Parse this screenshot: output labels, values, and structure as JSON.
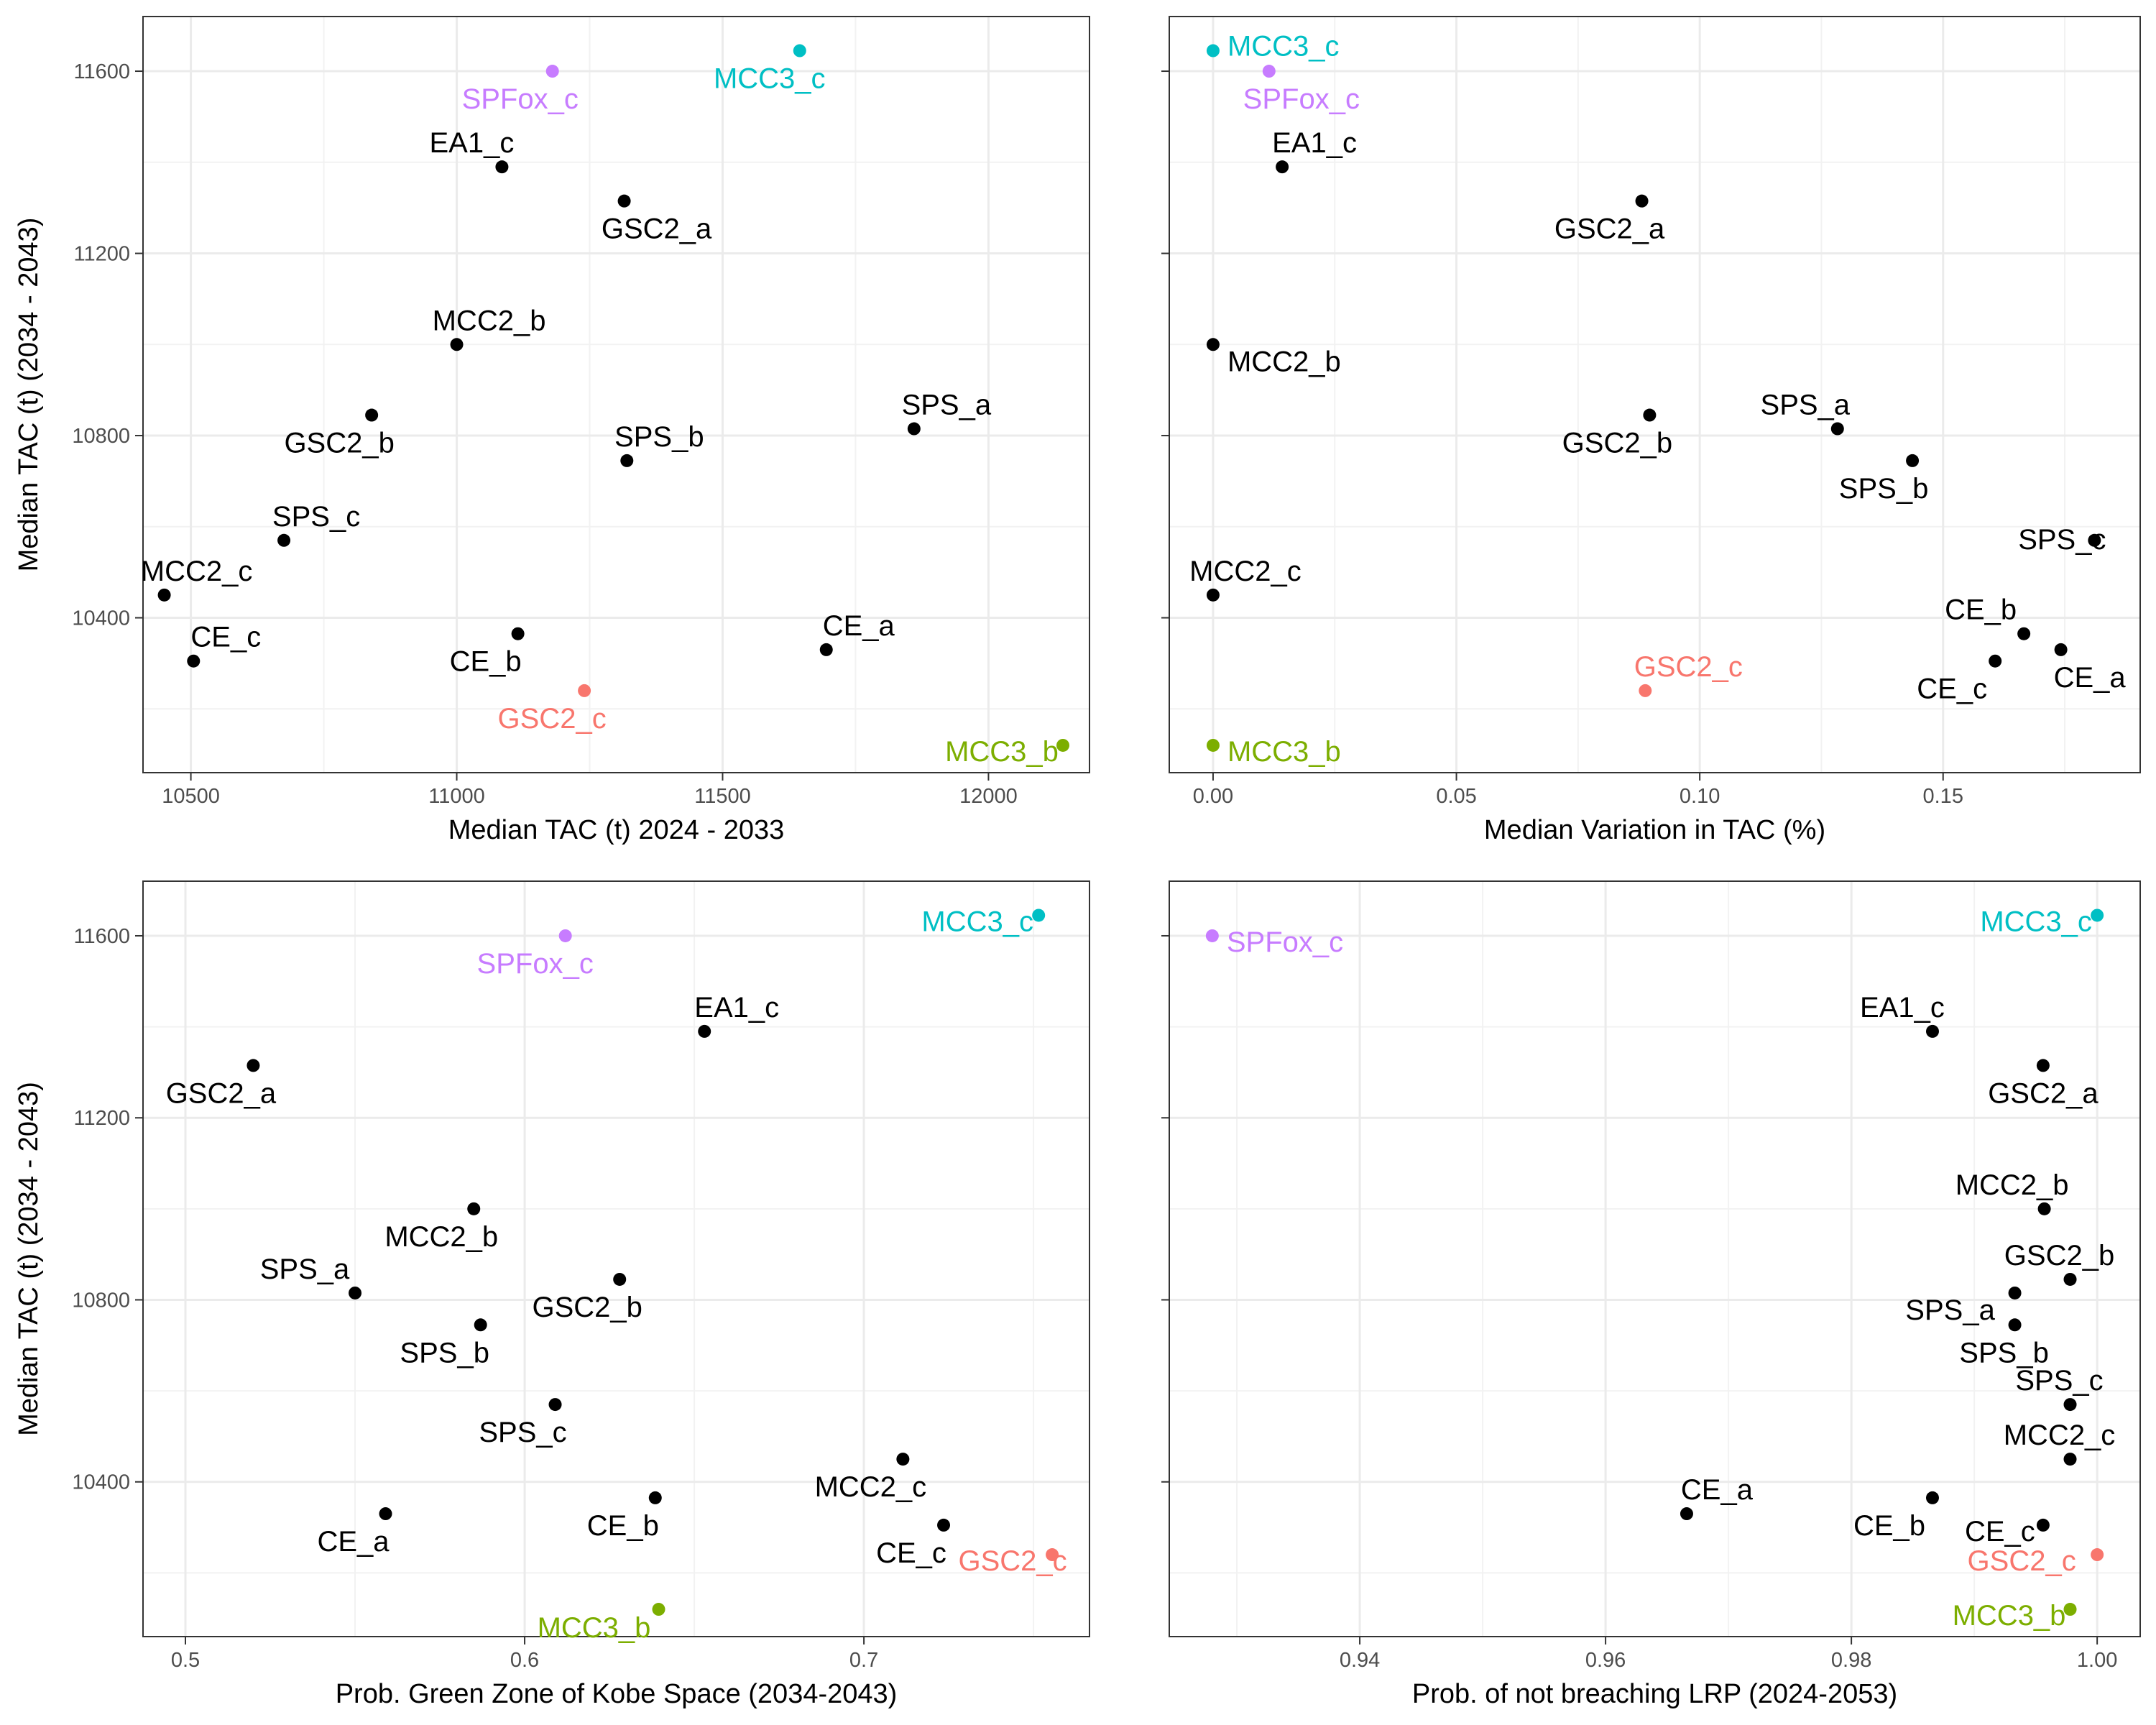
{
  "chart_data": [
    {
      "type": "scatter",
      "xlabel": "Median TAC (t) 2024 - 2033",
      "ylabel": "Median TAC (t) (2034 - 2043)",
      "xlim": [
        10410,
        12190
      ],
      "ylim": [
        10060,
        11720
      ],
      "xticks": [
        "10500",
        "11000",
        "11500",
        "12000"
      ],
      "xtick_values": [
        10500,
        11000,
        11500,
        12000
      ],
      "yticks": [
        "10400",
        "10800",
        "11200",
        "11600"
      ],
      "ytick_values": [
        10400,
        10800,
        11200,
        11600
      ],
      "grid": true,
      "points": [
        {
          "label": "SPFox_c",
          "x": 11180,
          "y": 11600,
          "color": "#C77CFF"
        },
        {
          "label": "MCC3_c",
          "x": 11645,
          "y": 11645,
          "color": "#00BFC4"
        },
        {
          "label": "EA1_c",
          "x": 11085,
          "y": 11390,
          "color": "#000000"
        },
        {
          "label": "GSC2_a",
          "x": 11315,
          "y": 11315,
          "color": "#000000"
        },
        {
          "label": "MCC2_b",
          "x": 11000,
          "y": 11000,
          "color": "#000000"
        },
        {
          "label": "GSC2_b",
          "x": 10840,
          "y": 10845,
          "color": "#000000"
        },
        {
          "label": "SPS_a",
          "x": 11860,
          "y": 10815,
          "color": "#000000"
        },
        {
          "label": "SPS_b",
          "x": 11320,
          "y": 10745,
          "color": "#000000"
        },
        {
          "label": "SPS_c",
          "x": 10675,
          "y": 10570,
          "color": "#000000"
        },
        {
          "label": "MCC2_c",
          "x": 10450,
          "y": 10450,
          "color": "#000000"
        },
        {
          "label": "CE_b",
          "x": 11115,
          "y": 10365,
          "color": "#000000"
        },
        {
          "label": "CE_a",
          "x": 11695,
          "y": 10330,
          "color": "#000000"
        },
        {
          "label": "CE_c",
          "x": 10505,
          "y": 10305,
          "color": "#000000"
        },
        {
          "label": "GSC2_c",
          "x": 11240,
          "y": 10240,
          "color": "#F8766D"
        },
        {
          "label": "MCC3_b",
          "x": 12140,
          "y": 10120,
          "color": "#7CAE00"
        }
      ]
    },
    {
      "type": "scatter",
      "xlabel": "Median Variation in TAC (%)",
      "ylabel": "",
      "xlim": [
        -0.009,
        0.1905
      ],
      "ylim": [
        10060,
        11720
      ],
      "xticks": [
        "0.00",
        "0.05",
        "0.10",
        "0.15"
      ],
      "xtick_values": [
        0,
        0.05,
        0.1,
        0.15
      ],
      "yticks": [
        "",
        "",
        "",
        ""
      ],
      "ytick_values": [
        10400,
        10800,
        11200,
        11600
      ],
      "grid": true,
      "points": [
        {
          "label": "MCC3_c",
          "x": 0.0,
          "y": 11645,
          "color": "#00BFC4"
        },
        {
          "label": "SPFox_c",
          "x": 0.0115,
          "y": 11600,
          "color": "#C77CFF"
        },
        {
          "label": "EA1_c",
          "x": 0.0142,
          "y": 11390,
          "color": "#000000"
        },
        {
          "label": "GSC2_a",
          "x": 0.0881,
          "y": 11315,
          "color": "#000000"
        },
        {
          "label": "MCC2_b",
          "x": 0.0,
          "y": 11000,
          "color": "#000000"
        },
        {
          "label": "GSC2_b",
          "x": 0.0897,
          "y": 10845,
          "color": "#000000"
        },
        {
          "label": "SPS_a",
          "x": 0.1283,
          "y": 10815,
          "color": "#000000"
        },
        {
          "label": "SPS_b",
          "x": 0.1437,
          "y": 10745,
          "color": "#000000"
        },
        {
          "label": "SPS_c",
          "x": 0.1811,
          "y": 10570,
          "color": "#000000"
        },
        {
          "label": "MCC2_c",
          "x": 0.0,
          "y": 10450,
          "color": "#000000"
        },
        {
          "label": "CE_b",
          "x": 0.1666,
          "y": 10365,
          "color": "#000000"
        },
        {
          "label": "CE_a",
          "x": 0.1742,
          "y": 10330,
          "color": "#000000"
        },
        {
          "label": "CE_c",
          "x": 0.1607,
          "y": 10305,
          "color": "#000000"
        },
        {
          "label": "GSC2_c",
          "x": 0.0888,
          "y": 10240,
          "color": "#F8766D"
        },
        {
          "label": "MCC3_b",
          "x": 0.0,
          "y": 10120,
          "color": "#7CAE00"
        }
      ]
    },
    {
      "type": "scatter",
      "xlabel": "Prob. Green Zone of Kobe Space (2034-2043)",
      "ylabel": "Median TAC (t) (2034 - 2043)",
      "xlim": [
        0.4875,
        0.7665
      ],
      "ylim": [
        10060,
        11720
      ],
      "xticks": [
        "0.5",
        "0.6",
        "0.7"
      ],
      "xtick_values": [
        0.5,
        0.6,
        0.7
      ],
      "yticks": [
        "10400",
        "10800",
        "11200",
        "11600"
      ],
      "ytick_values": [
        10400,
        10800,
        11200,
        11600
      ],
      "grid": true,
      "points": [
        {
          "label": "SPFox_c",
          "x": 0.612,
          "y": 11600,
          "color": "#C77CFF"
        },
        {
          "label": "MCC3_c",
          "x": 0.7515,
          "y": 11645,
          "color": "#00BFC4"
        },
        {
          "label": "EA1_c",
          "x": 0.653,
          "y": 11390,
          "color": "#000000"
        },
        {
          "label": "GSC2_a",
          "x": 0.52,
          "y": 11315,
          "color": "#000000"
        },
        {
          "label": "MCC2_b",
          "x": 0.585,
          "y": 11000,
          "color": "#000000"
        },
        {
          "label": "SPS_a",
          "x": 0.55,
          "y": 10815,
          "color": "#000000"
        },
        {
          "label": "GSC2_b",
          "x": 0.628,
          "y": 10845,
          "color": "#000000"
        },
        {
          "label": "SPS_b",
          "x": 0.587,
          "y": 10745,
          "color": "#000000"
        },
        {
          "label": "SPS_c",
          "x": 0.609,
          "y": 10570,
          "color": "#000000"
        },
        {
          "label": "MCC2_c",
          "x": 0.7115,
          "y": 10450,
          "color": "#000000"
        },
        {
          "label": "CE_b",
          "x": 0.6385,
          "y": 10365,
          "color": "#000000"
        },
        {
          "label": "CE_a",
          "x": 0.559,
          "y": 10330,
          "color": "#000000"
        },
        {
          "label": "CE_c",
          "x": 0.7235,
          "y": 10305,
          "color": "#000000"
        },
        {
          "label": "GSC2_c",
          "x": 0.7555,
          "y": 10240,
          "color": "#F8766D"
        },
        {
          "label": "MCC3_b",
          "x": 0.6395,
          "y": 10120,
          "color": "#7CAE00"
        }
      ]
    },
    {
      "type": "scatter",
      "xlabel": "Prob. of not breaching LRP (2024-2053)",
      "ylabel": "",
      "xlim": [
        0.9245,
        1.0035
      ],
      "ylim": [
        10060,
        11720
      ],
      "xticks": [
        "0.94",
        "0.96",
        "0.98",
        "1.00"
      ],
      "xtick_values": [
        0.94,
        0.96,
        0.98,
        1.0
      ],
      "yticks": [
        "",
        "",
        "",
        ""
      ],
      "ytick_values": [
        10400,
        10800,
        11200,
        11600
      ],
      "grid": true,
      "points": [
        {
          "label": "SPFox_c",
          "x": 0.928,
          "y": 11600,
          "color": "#C77CFF"
        },
        {
          "label": "MCC3_c",
          "x": 1.0,
          "y": 11645,
          "color": "#00BFC4"
        },
        {
          "label": "EA1_c",
          "x": 0.9866,
          "y": 11390,
          "color": "#000000"
        },
        {
          "label": "GSC2_a",
          "x": 0.9956,
          "y": 11315,
          "color": "#000000"
        },
        {
          "label": "MCC2_b",
          "x": 0.9957,
          "y": 11000,
          "color": "#000000"
        },
        {
          "label": "GSC2_b",
          "x": 0.9978,
          "y": 10845,
          "color": "#000000"
        },
        {
          "label": "SPS_a",
          "x": 0.9933,
          "y": 10815,
          "color": "#000000"
        },
        {
          "label": "SPS_b",
          "x": 0.9933,
          "y": 10745,
          "color": "#000000"
        },
        {
          "label": "SPS_c",
          "x": 0.9978,
          "y": 10570,
          "color": "#000000"
        },
        {
          "label": "MCC2_c",
          "x": 0.9978,
          "y": 10450,
          "color": "#000000"
        },
        {
          "label": "CE_b",
          "x": 0.9866,
          "y": 10365,
          "color": "#000000"
        },
        {
          "label": "CE_a",
          "x": 0.9666,
          "y": 10330,
          "color": "#000000"
        },
        {
          "label": "CE_c",
          "x": 0.9956,
          "y": 10305,
          "color": "#000000"
        },
        {
          "label": "GSC2_c",
          "x": 1.0,
          "y": 10240,
          "color": "#F8766D"
        },
        {
          "label": "MCC3_b",
          "x": 0.9978,
          "y": 10120,
          "color": "#7CAE00"
        }
      ]
    }
  ]
}
